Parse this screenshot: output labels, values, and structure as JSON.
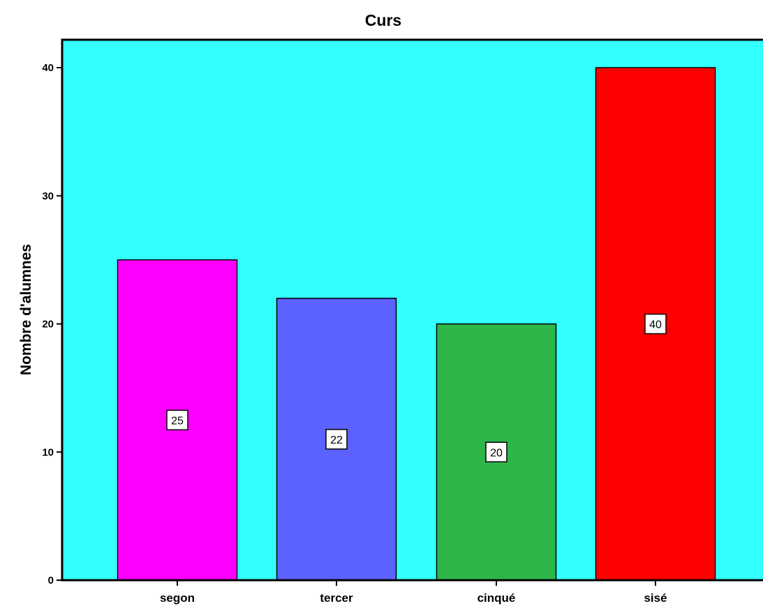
{
  "chart_data": {
    "type": "bar",
    "title": "Curs",
    "xlabel": "",
    "ylabel": "Nombre d'alumnes",
    "categories": [
      "segon",
      "tercer",
      "cinqué",
      "sisé"
    ],
    "values": [
      25,
      22,
      20,
      40
    ],
    "data_labels": [
      "25",
      "22",
      "20",
      "40"
    ],
    "bar_colors": [
      "#FF00FF",
      "#5B62FF",
      "#2DB54A",
      "#FF0000"
    ],
    "yticks": [
      0,
      10,
      20,
      30,
      40
    ],
    "ytick_labels": [
      "0",
      "10",
      "20",
      "30",
      "40"
    ],
    "ylim": [
      0,
      42
    ],
    "grid": false,
    "legend": "none",
    "plot_background": "#33FFFF",
    "page_background": "#FFFFFF"
  }
}
